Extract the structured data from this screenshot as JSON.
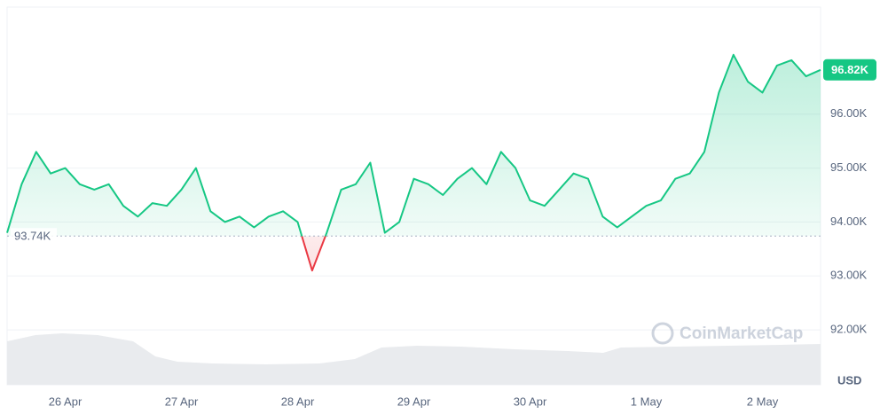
{
  "chart_data": {
    "type": "line",
    "categories": [
      null,
      null,
      null,
      null,
      "26 Apr",
      null,
      null,
      null,
      null,
      null,
      null,
      null,
      "27 Apr",
      null,
      null,
      null,
      null,
      null,
      null,
      null,
      "28 Apr",
      null,
      null,
      null,
      null,
      null,
      null,
      null,
      "29 Apr",
      null,
      null,
      null,
      null,
      null,
      null,
      null,
      "30 Apr",
      null,
      null,
      null,
      null,
      null,
      null,
      null,
      "1 May",
      null,
      null,
      null,
      null,
      null,
      null,
      null,
      "2 May",
      null,
      null,
      null,
      null
    ],
    "values": [
      93800,
      94700,
      95300,
      94900,
      95000,
      94700,
      94600,
      94700,
      94300,
      94100,
      94350,
      94300,
      94600,
      95000,
      94200,
      94000,
      94100,
      93900,
      94100,
      94200,
      94000,
      93100,
      93800,
      94600,
      94700,
      95100,
      93800,
      94000,
      94800,
      94700,
      94500,
      94800,
      95000,
      94700,
      95300,
      95000,
      94400,
      94300,
      94600,
      94900,
      94800,
      94100,
      93900,
      94100,
      94300,
      94400,
      94800,
      94900,
      95300,
      96400,
      97100,
      96600,
      96400,
      96900,
      97000,
      96700,
      96820
    ],
    "color": "#16c784",
    "down_color": "#ea3943",
    "baseline": {
      "value": 93740,
      "label": "93.74K"
    },
    "last_price": {
      "value": 96820,
      "label": "96.82K"
    },
    "unit": "USD",
    "watermark": "CoinMarketCap",
    "ylim": [
      91000,
      98000
    ],
    "yticks": [
      {
        "value": 92000,
        "label": "92.00K"
      },
      {
        "value": 93000,
        "label": "93.00K"
      },
      {
        "value": 94000,
        "label": "94.00K"
      },
      {
        "value": 95000,
        "label": "95.00K"
      },
      {
        "value": 96000,
        "label": "96.00K"
      }
    ],
    "grid": true
  }
}
